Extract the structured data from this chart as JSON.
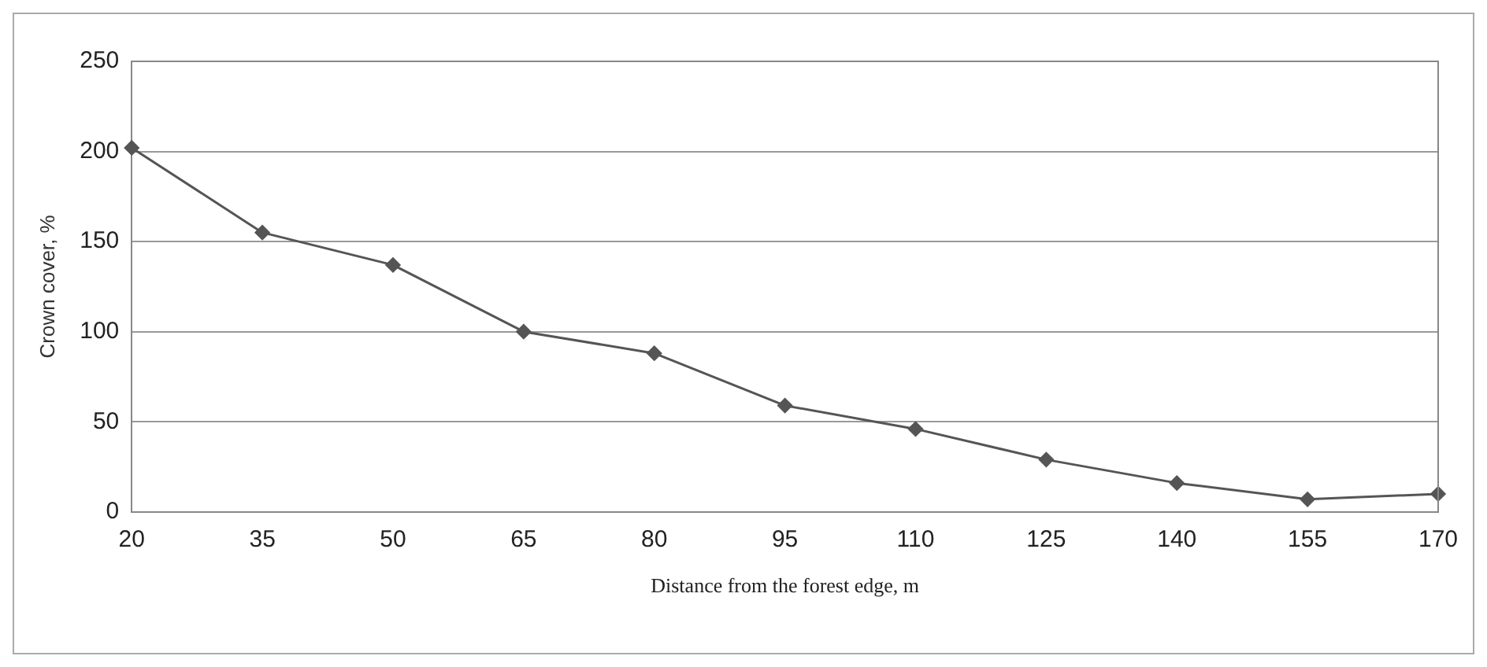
{
  "chart_data": {
    "type": "line",
    "xlabel": "Distance from the forest edge, m",
    "ylabel": "Crown cover, %",
    "categories": [
      "20",
      "35",
      "50",
      "65",
      "80",
      "95",
      "110",
      "125",
      "140",
      "155",
      "170"
    ],
    "series": [
      {
        "color": "#555555",
        "values": [
          202,
          155,
          137,
          100,
          88,
          59,
          46,
          29,
          16,
          7,
          10
        ]
      }
    ],
    "ylim": [
      0,
      250
    ],
    "yticks": [
      0,
      50,
      100,
      150,
      200,
      250
    ],
    "grid": "y",
    "legend": false,
    "marker": "diamond",
    "line_style": "solid"
  }
}
